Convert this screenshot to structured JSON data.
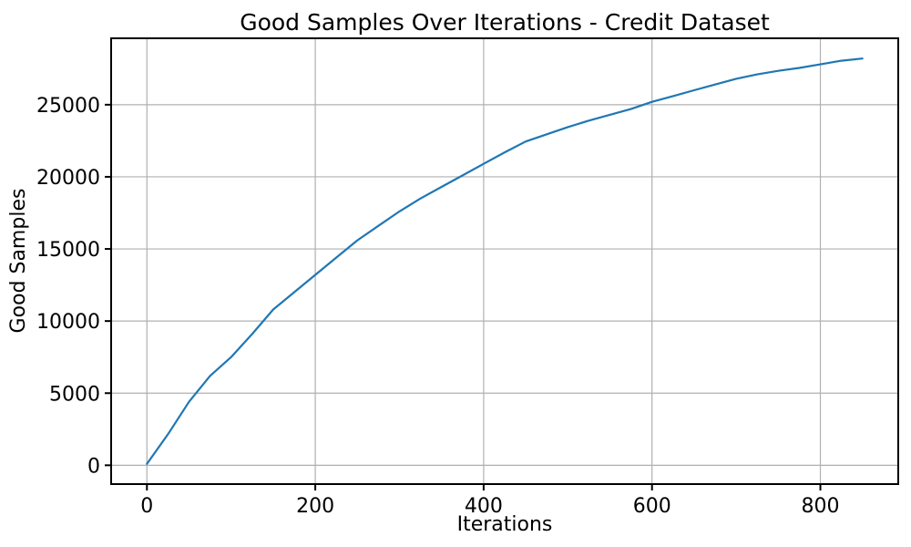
{
  "chart_data": {
    "type": "line",
    "title": "Good Samples Over Iterations - Credit Dataset",
    "xlabel": "Iterations",
    "ylabel": "Good Samples",
    "x": [
      0,
      25,
      50,
      75,
      100,
      125,
      150,
      175,
      200,
      225,
      250,
      275,
      300,
      325,
      350,
      375,
      400,
      425,
      450,
      475,
      500,
      525,
      550,
      575,
      600,
      625,
      650,
      675,
      700,
      725,
      750,
      775,
      800,
      825,
      850
    ],
    "y": [
      100,
      2150,
      4400,
      6200,
      7500,
      9100,
      10800,
      12000,
      13200,
      14400,
      15600,
      16600,
      17600,
      18500,
      19300,
      20100,
      20900,
      21700,
      22450,
      22950,
      23450,
      23900,
      24300,
      24700,
      25200,
      25600,
      26000,
      26400,
      26800,
      27100,
      27350,
      27550,
      27800,
      28050,
      28200
    ],
    "xticks": [
      0,
      200,
      400,
      600,
      800
    ],
    "yticks": [
      0,
      5000,
      10000,
      15000,
      20000,
      25000
    ],
    "xlim": [
      -42.5,
      892.5
    ],
    "ylim": [
      -1305,
      29605
    ],
    "grid": true,
    "legend_position": "none",
    "line_color": "#1f77b4",
    "grid_color": "#b0b0b0",
    "axis_color": "#000000"
  }
}
